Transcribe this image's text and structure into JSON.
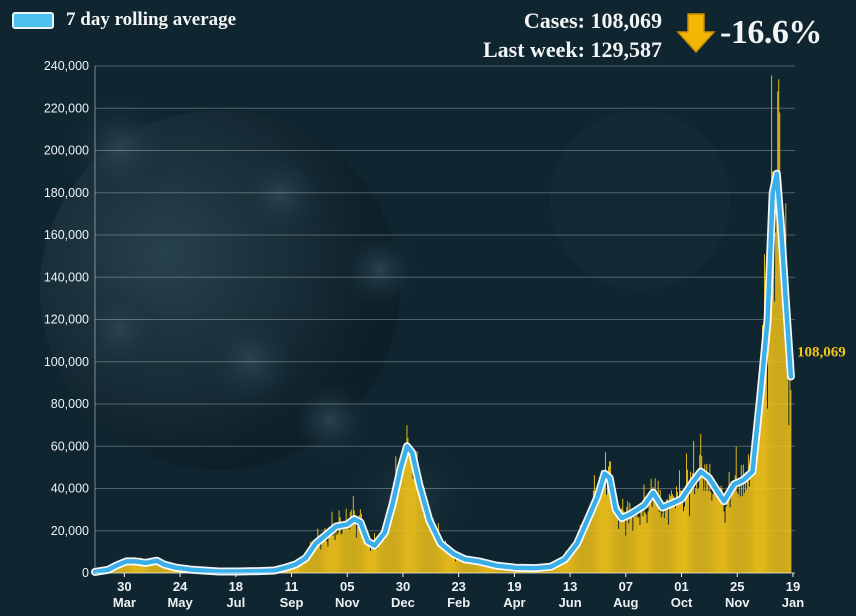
{
  "legend": {
    "label": "7 day rolling average"
  },
  "stats": {
    "cases_line": "Cases: 108,069",
    "last_week_line": "Last week: 129,587",
    "change": "-16.6%",
    "change_icon": "down-arrow-icon"
  },
  "colors": {
    "background": "#0f2530",
    "bars": "#f5c518",
    "line": "#3aaee8",
    "line_glow": "#ffffff",
    "end_label": "#f4c418",
    "arrow": "#f2b705"
  },
  "chart_data": {
    "type": "bar",
    "ylim": [
      0,
      240000
    ],
    "yticks": [
      0,
      20000,
      40000,
      60000,
      80000,
      100000,
      120000,
      140000,
      160000,
      180000,
      200000,
      220000,
      240000
    ],
    "ytick_labels": [
      "0",
      "20,000",
      "40,000",
      "60,000",
      "80,000",
      "100,000",
      "120,000",
      "140,000",
      "160,000",
      "180,000",
      "200,000",
      "220,000",
      "240,000"
    ],
    "xlim": [
      "2020-03-01",
      "2022-01-21"
    ],
    "x_ticks": [
      {
        "date": "2020-03-30",
        "day": "30",
        "month": "Mar"
      },
      {
        "date": "2020-05-24",
        "day": "24",
        "month": "May"
      },
      {
        "date": "2020-07-18",
        "day": "18",
        "month": "Jul"
      },
      {
        "date": "2020-09-11",
        "day": "11",
        "month": "Sep"
      },
      {
        "date": "2020-11-05",
        "day": "05",
        "month": "Nov"
      },
      {
        "date": "2020-12-30",
        "day": "30",
        "month": "Dec"
      },
      {
        "date": "2021-02-23",
        "day": "23",
        "month": "Feb"
      },
      {
        "date": "2021-04-19",
        "day": "19",
        "month": "Apr"
      },
      {
        "date": "2021-06-13",
        "day": "13",
        "month": "Jun"
      },
      {
        "date": "2021-08-07",
        "day": "07",
        "month": "Aug"
      },
      {
        "date": "2021-10-01",
        "day": "01",
        "month": "Oct"
      },
      {
        "date": "2021-11-25",
        "day": "25",
        "month": "Nov"
      },
      {
        "date": "2022-01-19",
        "day": "19",
        "month": "Jan"
      }
    ],
    "grid": true,
    "series": [
      {
        "name": "7 day rolling average",
        "type": "line",
        "points": [
          [
            "2020-03-01",
            500
          ],
          [
            "2020-03-14",
            1500
          ],
          [
            "2020-03-22",
            3500
          ],
          [
            "2020-04-01",
            5500
          ],
          [
            "2020-04-10",
            5500
          ],
          [
            "2020-04-20",
            4800
          ],
          [
            "2020-05-01",
            5800
          ],
          [
            "2020-05-08",
            4000
          ],
          [
            "2020-05-20",
            2500
          ],
          [
            "2020-06-05",
            1500
          ],
          [
            "2020-07-01",
            700
          ],
          [
            "2020-07-20",
            700
          ],
          [
            "2020-08-10",
            900
          ],
          [
            "2020-08-25",
            1200
          ],
          [
            "2020-09-05",
            2500
          ],
          [
            "2020-09-15",
            4000
          ],
          [
            "2020-09-25",
            7000
          ],
          [
            "2020-10-05",
            14000
          ],
          [
            "2020-10-15",
            18000
          ],
          [
            "2020-10-25",
            22000
          ],
          [
            "2020-11-05",
            23000
          ],
          [
            "2020-11-12",
            25500
          ],
          [
            "2020-11-18",
            24000
          ],
          [
            "2020-11-25",
            15000
          ],
          [
            "2020-12-02",
            13000
          ],
          [
            "2020-12-12",
            19000
          ],
          [
            "2020-12-20",
            33000
          ],
          [
            "2020-12-28",
            50000
          ],
          [
            "2021-01-03",
            60000
          ],
          [
            "2021-01-08",
            57000
          ],
          [
            "2021-01-15",
            42000
          ],
          [
            "2021-01-25",
            25000
          ],
          [
            "2021-02-05",
            14000
          ],
          [
            "2021-02-18",
            9000
          ],
          [
            "2021-03-01",
            6500
          ],
          [
            "2021-03-15",
            5500
          ],
          [
            "2021-04-01",
            3500
          ],
          [
            "2021-04-20",
            2500
          ],
          [
            "2021-05-10",
            2300
          ],
          [
            "2021-05-25",
            3000
          ],
          [
            "2021-06-08",
            6500
          ],
          [
            "2021-06-20",
            14000
          ],
          [
            "2021-07-01",
            26000
          ],
          [
            "2021-07-10",
            36000
          ],
          [
            "2021-07-17",
            47000
          ],
          [
            "2021-07-22",
            45000
          ],
          [
            "2021-07-28",
            30000
          ],
          [
            "2021-08-03",
            26000
          ],
          [
            "2021-08-12",
            28000
          ],
          [
            "2021-08-25",
            32000
          ],
          [
            "2021-09-03",
            38000
          ],
          [
            "2021-09-12",
            31000
          ],
          [
            "2021-09-22",
            33000
          ],
          [
            "2021-10-01",
            35000
          ],
          [
            "2021-10-12",
            43000
          ],
          [
            "2021-10-20",
            48000
          ],
          [
            "2021-10-28",
            45000
          ],
          [
            "2021-11-05",
            39000
          ],
          [
            "2021-11-12",
            34000
          ],
          [
            "2021-11-22",
            42000
          ],
          [
            "2021-12-01",
            44000
          ],
          [
            "2021-12-10",
            48000
          ],
          [
            "2021-12-18",
            85000
          ],
          [
            "2021-12-25",
            120000
          ],
          [
            "2021-12-30",
            180000
          ],
          [
            "2022-01-03",
            189000
          ],
          [
            "2022-01-07",
            165000
          ],
          [
            "2022-01-12",
            128000
          ],
          [
            "2022-01-17",
            93000
          ]
        ]
      },
      {
        "name": "daily cases",
        "type": "bar",
        "source": "daily values fluctuate around the 7 day rolling average; peak spike near 228,000 on 2022-01-04"
      }
    ],
    "end_value_label": "108,069"
  }
}
